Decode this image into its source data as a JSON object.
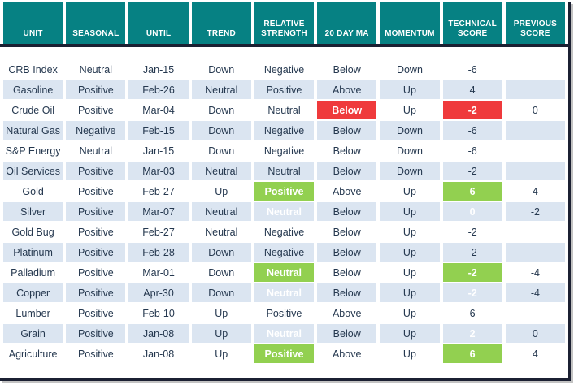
{
  "colors": {
    "header_bg": "#068183",
    "header_text": "#ffffff",
    "row_bg": "#ffffff",
    "row_alt_bg": "#dbe5f1",
    "data_text": "#25384f",
    "green_fill": "#92d050",
    "red_fill": "#ef3a3c",
    "fill_text": "#ffffff",
    "frame": "#1b2032",
    "shadow": "#c3c3c3"
  },
  "chart_data": {
    "type": "table",
    "columns": [
      "UNIT",
      "SEASONAL",
      "UNTIL",
      "TREND",
      "RELATIVE STRENGTH",
      "20 DAY MA",
      "MOMENTUM",
      "TECHNICAL SCORE",
      "PREVIOUS SCORE"
    ],
    "rows": [
      [
        "CRB Index",
        "Neutral",
        "Jan-15",
        "Down",
        "Negative",
        "Below",
        "Down",
        "-6",
        ""
      ],
      [
        "Gasoline",
        "Positive",
        "Feb-26",
        "Neutral",
        "Positive",
        "Above",
        "Up",
        "4",
        ""
      ],
      [
        "Crude Oil",
        "Positive",
        "Mar-04",
        "Down",
        "Neutral",
        "Below",
        "Up",
        "-2",
        "0"
      ],
      [
        "Natural Gas",
        "Negative",
        "Feb-15",
        "Down",
        "Negative",
        "Below",
        "Down",
        "-6",
        ""
      ],
      [
        "S&P Energy",
        "Neutral",
        "Jan-15",
        "Down",
        "Negative",
        "Below",
        "Down",
        "-6",
        ""
      ],
      [
        "Oil Services",
        "Positive",
        "Mar-03",
        "Neutral",
        "Neutral",
        "Below",
        "Down",
        "-2",
        ""
      ],
      [
        "Gold",
        "Positive",
        "Feb-27",
        "Up",
        "Positive",
        "Above",
        "Up",
        "6",
        "4"
      ],
      [
        "Silver",
        "Positive",
        "Mar-07",
        "Neutral",
        "Neutral",
        "Below",
        "Up",
        "0",
        "-2"
      ],
      [
        "Gold Bug",
        "Positive",
        "Feb-27",
        "Neutral",
        "Negative",
        "Below",
        "Up",
        "-2",
        ""
      ],
      [
        "Platinum",
        "Positive",
        "Feb-28",
        "Down",
        "Negative",
        "Below",
        "Up",
        "-2",
        ""
      ],
      [
        "Palladium",
        "Positive",
        "Mar-01",
        "Down",
        "Neutral",
        "Below",
        "Up",
        "-2",
        "-4"
      ],
      [
        "Copper",
        "Positive",
        "Apr-30",
        "Down",
        "Neutral",
        "Below",
        "Up",
        "-2",
        "-4"
      ],
      [
        "Lumber",
        "Positive",
        "Feb-10",
        "Up",
        "Positive",
        "Above",
        "Up",
        "6",
        ""
      ],
      [
        "Grain",
        "Positive",
        "Jan-08",
        "Up",
        "Neutral",
        "Below",
        "Up",
        "2",
        "0"
      ],
      [
        "Agriculture",
        "Positive",
        "Jan-08",
        "Up",
        "Positive",
        "Above",
        "Up",
        "6",
        "4"
      ]
    ],
    "cell_fills": [
      {
        "row": "Crude Oil",
        "column": "20 DAY MA",
        "fill": "red"
      },
      {
        "row": "Crude Oil",
        "column": "TECHNICAL SCORE",
        "fill": "red"
      },
      {
        "row": "Gold",
        "column": "RELATIVE STRENGTH",
        "fill": "green"
      },
      {
        "row": "Gold",
        "column": "TECHNICAL SCORE",
        "fill": "green"
      },
      {
        "row": "Silver",
        "column": "RELATIVE STRENGTH",
        "fill": "green"
      },
      {
        "row": "Silver",
        "column": "TECHNICAL SCORE",
        "fill": "green"
      },
      {
        "row": "Palladium",
        "column": "RELATIVE STRENGTH",
        "fill": "green"
      },
      {
        "row": "Palladium",
        "column": "TECHNICAL SCORE",
        "fill": "green"
      },
      {
        "row": "Copper",
        "column": "RELATIVE STRENGTH",
        "fill": "green"
      },
      {
        "row": "Copper",
        "column": "TECHNICAL SCORE",
        "fill": "green"
      },
      {
        "row": "Grain",
        "column": "RELATIVE STRENGTH",
        "fill": "green"
      },
      {
        "row": "Grain",
        "column": "TECHNICAL SCORE",
        "fill": "green"
      },
      {
        "row": "Agriculture",
        "column": "RELATIVE STRENGTH",
        "fill": "green"
      },
      {
        "row": "Agriculture",
        "column": "TECHNICAL SCORE",
        "fill": "green"
      }
    ]
  }
}
